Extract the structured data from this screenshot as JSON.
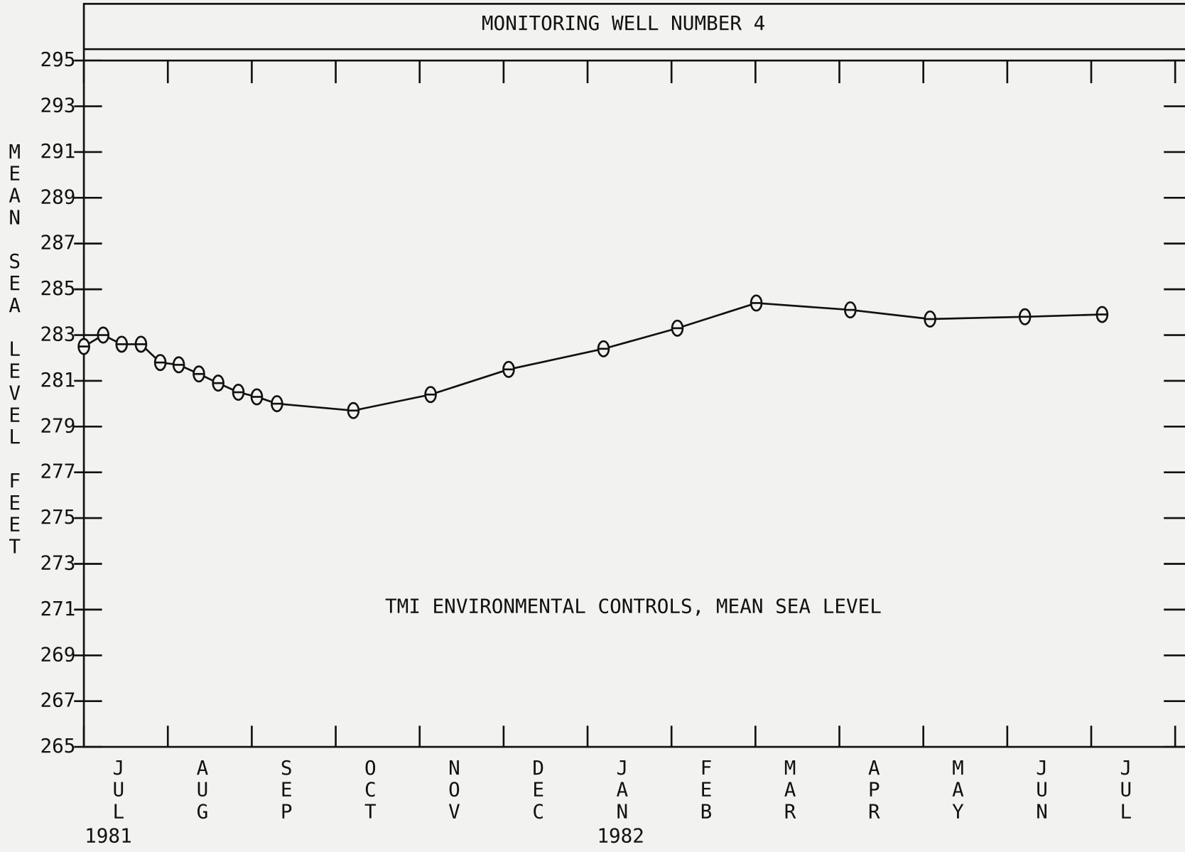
{
  "chart_data": {
    "type": "line",
    "title": "MONITORING WELL NUMBER 4",
    "y_label": "MEAN SEA LEVEL FEET",
    "annotation": "TMI ENVIRONMENTAL CONTROLS, MEAN SEA LEVEL",
    "years": [
      "1981",
      "1982"
    ],
    "categories": [
      "JUL",
      "AUG",
      "SEP",
      "OCT",
      "NOV",
      "DEC",
      "JAN",
      "FEB",
      "MAR",
      "APR",
      "MAY",
      "JUN",
      "JUL"
    ],
    "xlim": [
      0,
      13
    ],
    "xticks": [
      0,
      1,
      2,
      3,
      4,
      5,
      6,
      7,
      8,
      9,
      10,
      11,
      12,
      13
    ],
    "ylim": [
      265,
      295
    ],
    "yticks": [
      265,
      267,
      269,
      271,
      273,
      275,
      277,
      279,
      281,
      283,
      285,
      287,
      289,
      291,
      293,
      295
    ],
    "color": "#111111",
    "x": [
      0,
      0.23,
      0.45,
      0.68,
      0.91,
      1.13,
      1.37,
      1.6,
      1.84,
      2.06,
      2.3,
      3.21,
      4.13,
      5.06,
      6.19,
      7.07,
      8.01,
      9.13,
      10.08,
      11.21,
      12.13
    ],
    "values": [
      282.5,
      283.0,
      282.6,
      282.6,
      281.8,
      281.7,
      281.3,
      280.9,
      280.5,
      280.3,
      280.0,
      279.7,
      280.4,
      281.5,
      282.4,
      283.3,
      284.4,
      284.1,
      283.7,
      283.8,
      283.9
    ]
  }
}
